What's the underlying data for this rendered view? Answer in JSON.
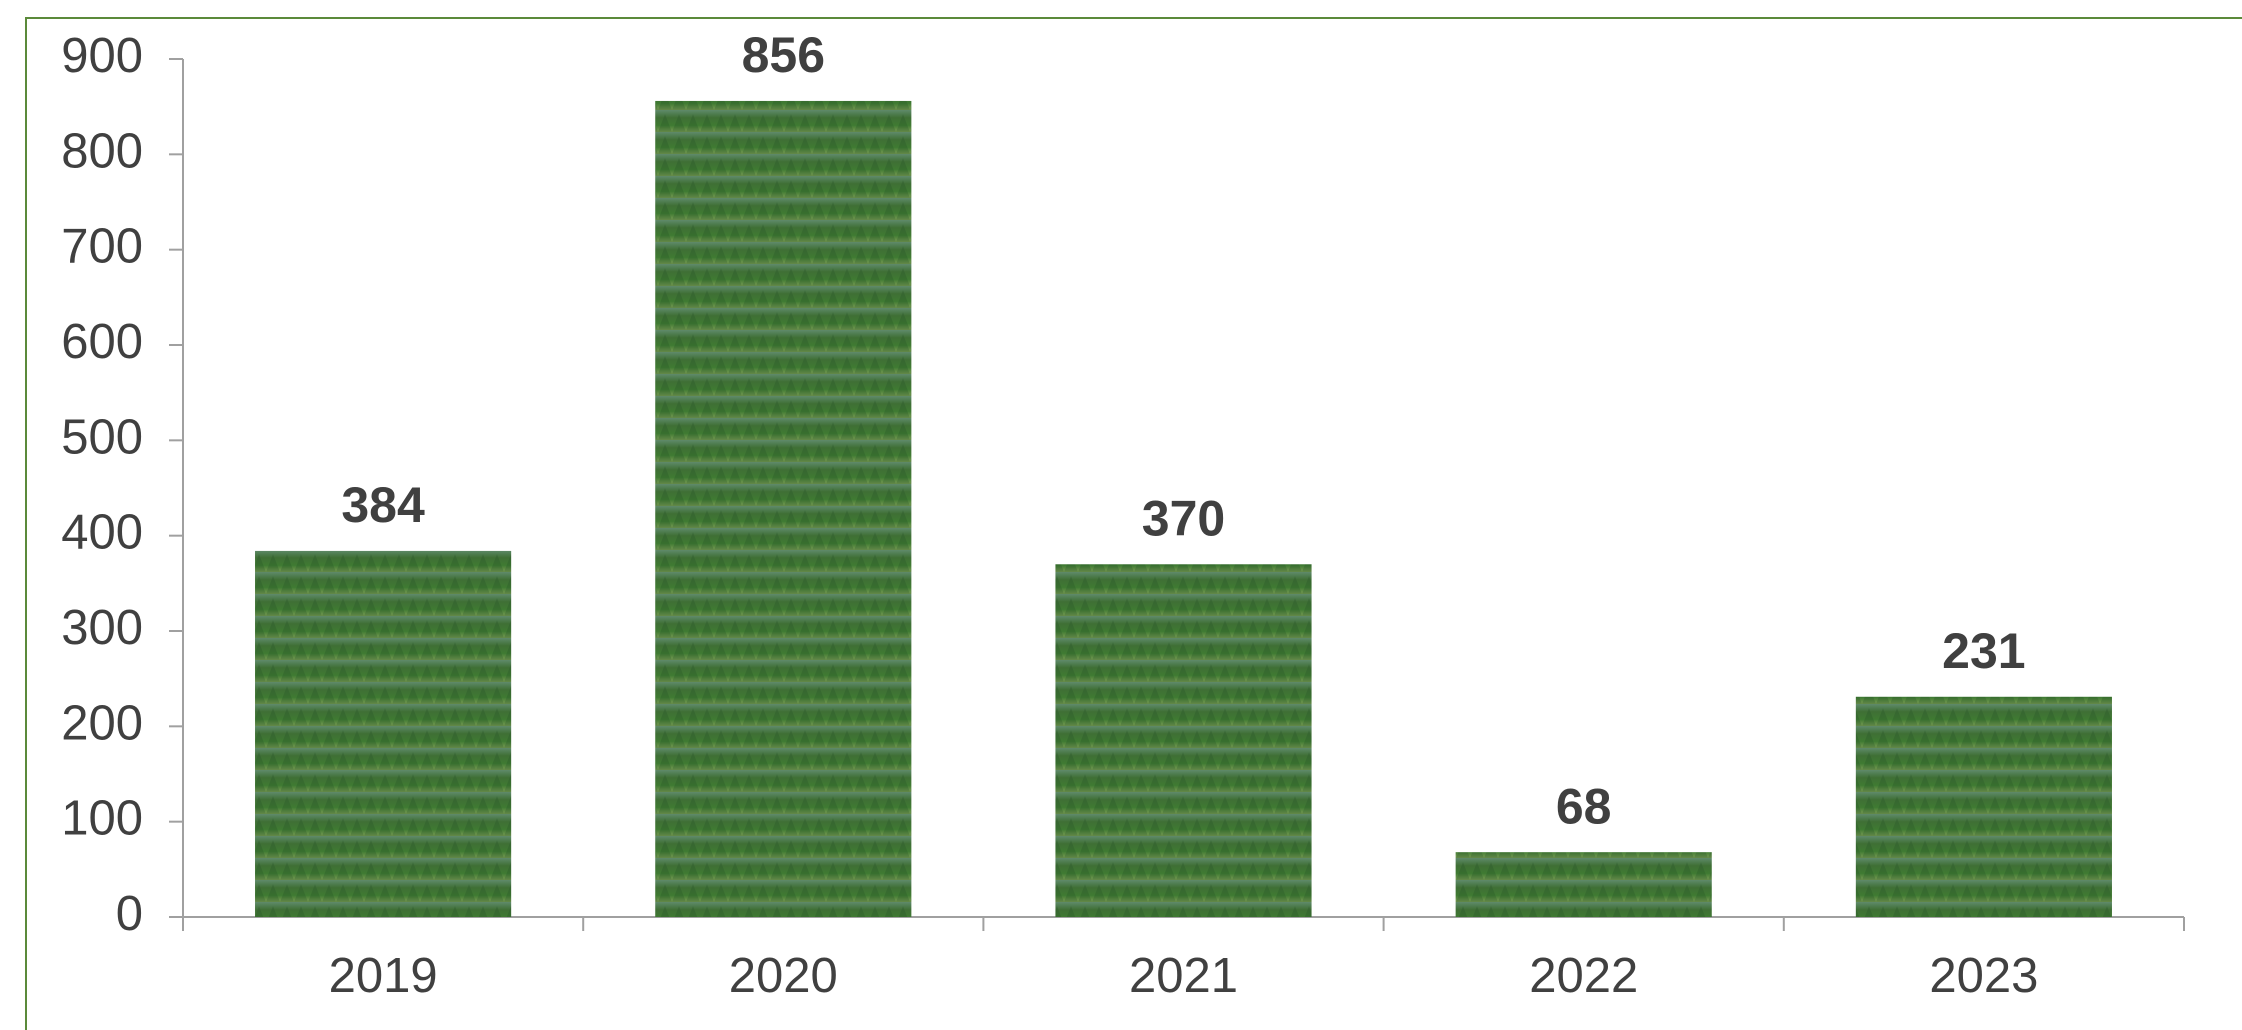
{
  "chart_data": {
    "type": "bar",
    "categories": [
      "2019",
      "2020",
      "2021",
      "2022",
      "2023"
    ],
    "values": [
      384,
      856,
      370,
      68,
      231
    ],
    "color": "#3f6f35",
    "ylim": [
      0,
      900
    ],
    "yticks": [
      0,
      100,
      200,
      300,
      400,
      500,
      600,
      700,
      800,
      900
    ],
    "grid": false
  }
}
